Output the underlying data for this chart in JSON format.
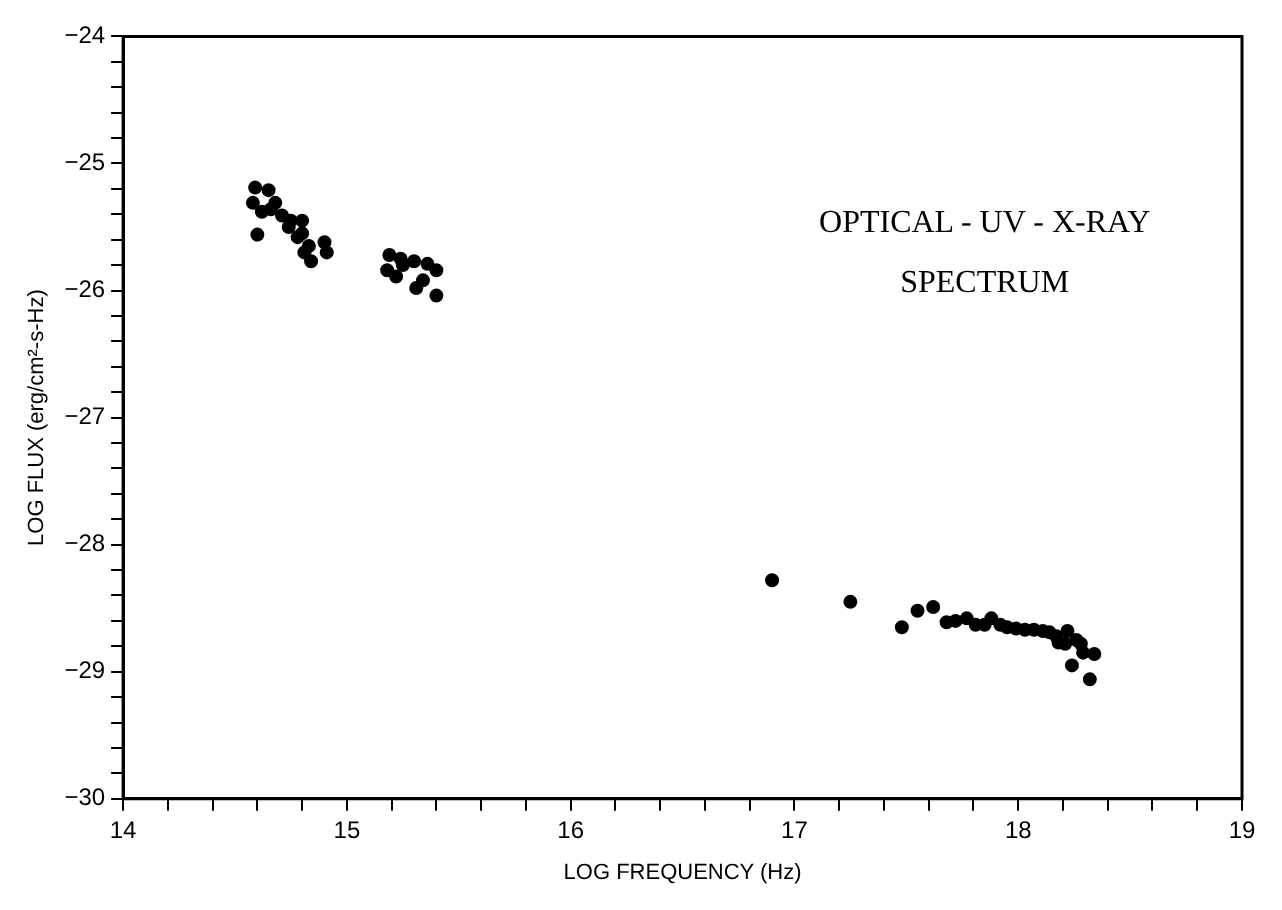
{
  "chart_data": {
    "type": "scatter",
    "xlabel": "LOG FREQUENCY (Hz)",
    "ylabel": "LOG FLUX (erg/cm²-s-Hz)",
    "annotations": [
      "OPTICAL - UV - X-RAY",
      "SPECTRUM"
    ],
    "xlim": [
      14,
      19
    ],
    "xticks": [
      14,
      {
        "value": 14.2,
        "label": null
      },
      {
        "value": 14.4,
        "label": null
      },
      {
        "value": 14.6,
        "label": null
      },
      {
        "value": 14.8,
        "label": null
      },
      15,
      {
        "value": 15.2,
        "label": null
      },
      {
        "value": 15.4,
        "label": null
      },
      {
        "value": 15.6,
        "label": null
      },
      {
        "value": 15.8,
        "label": null
      },
      16,
      {
        "value": 16.2,
        "label": null
      },
      {
        "value": 16.4,
        "label": null
      },
      {
        "value": 16.6,
        "label": null
      },
      {
        "value": 16.8,
        "label": null
      },
      17,
      {
        "value": 17.2,
        "label": null
      },
      {
        "value": 17.4,
        "label": null
      },
      {
        "value": 17.6,
        "label": null
      },
      {
        "value": 17.8,
        "label": null
      },
      18,
      {
        "value": 18.2,
        "label": null
      },
      {
        "value": 18.4,
        "label": null
      },
      {
        "value": 18.6,
        "label": null
      },
      {
        "value": 18.8,
        "label": null
      },
      19
    ],
    "ylim": [
      -30,
      -24
    ],
    "yticks": [
      -30,
      {
        "value": -29.8,
        "label": null
      },
      {
        "value": -29.6,
        "label": null
      },
      {
        "value": -29.4,
        "label": null
      },
      {
        "value": -29.2,
        "label": null
      },
      -29,
      {
        "value": -28.8,
        "label": null
      },
      {
        "value": -28.6,
        "label": null
      },
      {
        "value": -28.4,
        "label": null
      },
      {
        "value": -28.2,
        "label": null
      },
      -28,
      {
        "value": -27.8,
        "label": null
      },
      {
        "value": -27.6,
        "label": null
      },
      {
        "value": -27.4,
        "label": null
      },
      {
        "value": -27.2,
        "label": null
      },
      -27,
      {
        "value": -26.8,
        "label": null
      },
      {
        "value": -26.6,
        "label": null
      },
      {
        "value": -26.4,
        "label": null
      },
      {
        "value": -26.2,
        "label": null
      },
      -26,
      {
        "value": -25.8,
        "label": null
      },
      {
        "value": -25.6,
        "label": null
      },
      {
        "value": -25.4,
        "label": null
      },
      {
        "value": -25.2,
        "label": null
      },
      -25,
      {
        "value": -24.8,
        "label": null
      },
      {
        "value": -24.6,
        "label": null
      },
      {
        "value": -24.4,
        "label": null
      },
      {
        "value": -24.2,
        "label": null
      },
      -24
    ],
    "grid": false,
    "legend": false,
    "marker": "circle",
    "series": [
      {
        "color": "#000000",
        "x": [
          14.59,
          14.65,
          14.58,
          14.62,
          14.66,
          14.6,
          14.71,
          14.74,
          14.8,
          14.78,
          14.83,
          14.9,
          14.84,
          14.8,
          14.91,
          14.68,
          14.75,
          14.81,
          15.19,
          15.24,
          15.18,
          15.22,
          15.25,
          15.3,
          15.36,
          15.4,
          15.34,
          15.31,
          15.4,
          16.9,
          17.25,
          17.48,
          17.55,
          17.62,
          17.68,
          17.72,
          17.77,
          17.81,
          17.85,
          17.88,
          17.92,
          17.95,
          17.99,
          18.03,
          18.07,
          18.11,
          18.14,
          18.17,
          18.18,
          18.21,
          18.22,
          18.24,
          18.26,
          18.28,
          18.29,
          18.32,
          18.34
        ],
        "values": [
          -25.19,
          -25.21,
          -25.31,
          -25.38,
          -25.36,
          -25.56,
          -25.41,
          -25.5,
          -25.45,
          -25.58,
          -25.65,
          -25.62,
          -25.77,
          -25.55,
          -25.7,
          -25.31,
          -25.45,
          -25.7,
          -25.72,
          -25.75,
          -25.84,
          -25.89,
          -25.8,
          -25.77,
          -25.79,
          -25.84,
          -25.92,
          -25.98,
          -26.04,
          -28.28,
          -28.45,
          -28.65,
          -28.52,
          -28.49,
          -28.61,
          -28.6,
          -28.58,
          -28.63,
          -28.63,
          -28.58,
          -28.63,
          -28.65,
          -28.66,
          -28.67,
          -28.67,
          -28.68,
          -28.69,
          -28.72,
          -28.77,
          -28.78,
          -28.68,
          -28.95,
          -28.75,
          -28.78,
          -28.85,
          -29.06,
          -28.86
        ]
      }
    ]
  }
}
